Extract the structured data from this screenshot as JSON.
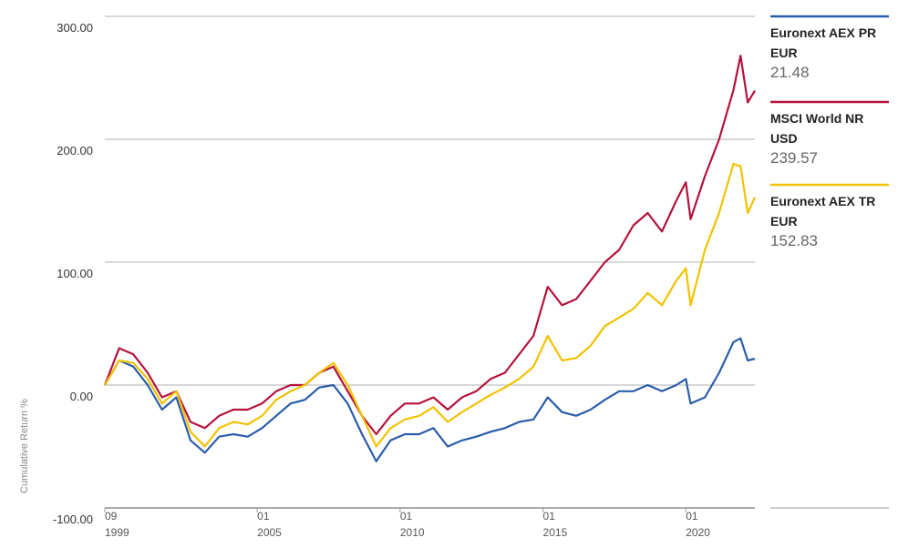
{
  "chart_data": {
    "type": "line",
    "y_label": "Cumulative Return %",
    "x": [
      "1999-09",
      "2000-03",
      "2000-09",
      "2001-03",
      "2001-09",
      "2002-03",
      "2002-09",
      "2003-03",
      "2003-09",
      "2004-03",
      "2004-09",
      "2005-03",
      "2005-09",
      "2006-03",
      "2006-09",
      "2007-03",
      "2007-09",
      "2008-03",
      "2008-09",
      "2009-03",
      "2009-09",
      "2010-03",
      "2010-09",
      "2011-03",
      "2011-09",
      "2012-03",
      "2012-09",
      "2013-03",
      "2013-09",
      "2014-03",
      "2014-09",
      "2015-03",
      "2015-09",
      "2016-03",
      "2016-09",
      "2017-03",
      "2017-09",
      "2018-03",
      "2018-09",
      "2019-03",
      "2019-09",
      "2020-01",
      "2020-03",
      "2020-09",
      "2021-03",
      "2021-09",
      "2021-12",
      "2022-03",
      "2022-06"
    ],
    "series": [
      {
        "name": "Euronext AEX PR EUR",
        "color": "#2a5caa",
        "values": [
          0,
          20,
          15,
          0,
          -20,
          -10,
          -45,
          -55,
          -42,
          -40,
          -42,
          -35,
          -25,
          -15,
          -12,
          -2,
          0,
          -15,
          -40,
          -62,
          -45,
          -40,
          -40,
          -35,
          -50,
          -45,
          -42,
          -38,
          -35,
          -30,
          -28,
          -10,
          -22,
          -25,
          -20,
          -12,
          -5,
          -5,
          0,
          -5,
          0,
          5,
          -15,
          -10,
          10,
          35,
          38,
          20,
          21.48
        ]
      },
      {
        "name": "MSCI World NR USD",
        "color": "#b5123b",
        "values": [
          0,
          30,
          25,
          10,
          -10,
          -5,
          -30,
          -35,
          -25,
          -20,
          -20,
          -15,
          -5,
          0,
          0,
          10,
          15,
          -5,
          -25,
          -40,
          -25,
          -15,
          -15,
          -10,
          -20,
          -10,
          -5,
          5,
          10,
          25,
          40,
          80,
          65,
          70,
          85,
          100,
          110,
          130,
          140,
          125,
          150,
          165,
          135,
          170,
          200,
          240,
          268,
          230,
          239.57
        ]
      },
      {
        "name": "Euronext AEX TR EUR",
        "color": "#f2c200",
        "values": [
          0,
          20,
          18,
          5,
          -15,
          -5,
          -38,
          -50,
          -35,
          -30,
          -32,
          -25,
          -12,
          -5,
          0,
          10,
          18,
          0,
          -25,
          -50,
          -35,
          -28,
          -25,
          -18,
          -30,
          -22,
          -15,
          -8,
          -2,
          5,
          15,
          40,
          20,
          22,
          32,
          48,
          55,
          62,
          75,
          65,
          85,
          95,
          65,
          110,
          140,
          180,
          178,
          140,
          152.83
        ]
      }
    ],
    "xlim": [
      "1999-09",
      "2022-06"
    ],
    "xticks": [
      {
        "value": "1999-09",
        "label": [
          "09",
          "1999"
        ]
      },
      {
        "value": "2005-01",
        "label": [
          "01",
          "2005"
        ]
      },
      {
        "value": "2010-01",
        "label": [
          "01",
          "2010"
        ]
      },
      {
        "value": "2015-01",
        "label": [
          "01",
          "2015"
        ]
      },
      {
        "value": "2020-01",
        "label": [
          "01",
          "2020"
        ]
      }
    ],
    "ylim": [
      -100,
      300
    ],
    "yticks": [
      {
        "value": -100,
        "label": "-100.00"
      },
      {
        "value": 0,
        "label": "0.00"
      },
      {
        "value": 100,
        "label": "100.00"
      },
      {
        "value": 200,
        "label": "200.00"
      },
      {
        "value": 300,
        "label": "300.00"
      }
    ],
    "grid": true
  }
}
